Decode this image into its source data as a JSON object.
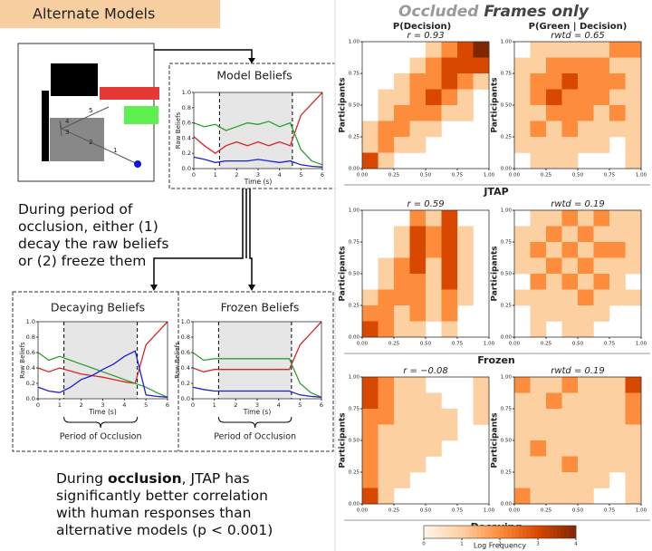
{
  "header": "Alternate Models",
  "scene": {
    "labels": [
      "5",
      "4",
      "3",
      "2",
      "1"
    ]
  },
  "belief_axes": {
    "xlim": [
      0,
      6
    ],
    "ylim": [
      0,
      1
    ],
    "xticks": [
      0,
      1,
      2,
      3,
      4,
      5,
      6
    ],
    "yticks": [
      {
        "value": 0,
        "label": "0.0"
      },
      {
        "value": 0.2,
        "label": "0.2"
      },
      {
        "value": 0.4,
        "label": "0.4"
      },
      {
        "value": 0.6,
        "label": "0.6"
      },
      {
        "value": 0.8,
        "label": "0.8"
      },
      {
        "value": 1,
        "label": "1.0"
      }
    ],
    "xlabel": "Time (s)",
    "ylabel": "Raw Beliefs"
  },
  "x": [
    0,
    0.5,
    1,
    1.5,
    2,
    2.5,
    3,
    3.5,
    4,
    4.5,
    5,
    5.5,
    6
  ],
  "plots": [
    {
      "title": "Model Beliefs",
      "occlusion": [
        1.2,
        4.6
      ],
      "series": [
        {
          "color": "#d62728",
          "values": [
            0.42,
            0.3,
            0.2,
            0.3,
            0.35,
            0.3,
            0.35,
            0.3,
            0.35,
            0.3,
            0.7,
            0.85,
            1.0
          ]
        },
        {
          "color": "#2ca02c",
          "values": [
            0.6,
            0.55,
            0.58,
            0.5,
            0.55,
            0.6,
            0.58,
            0.62,
            0.55,
            0.6,
            0.25,
            0.1,
            0.05
          ]
        },
        {
          "color": "#1f1fd0",
          "values": [
            0.15,
            0.12,
            0.08,
            0.1,
            0.1,
            0.1,
            0.12,
            0.1,
            0.08,
            0.1,
            0.05,
            0.03,
            0.02
          ]
        }
      ]
    },
    {
      "title": "Decaying Beliefs",
      "occlusion": [
        1.2,
        4.6
      ],
      "series": [
        {
          "color": "#d62728",
          "values": [
            0.4,
            0.35,
            0.4,
            0.36,
            0.32,
            0.3,
            0.28,
            0.25,
            0.22,
            0.2,
            0.7,
            0.85,
            1.0
          ]
        },
        {
          "color": "#2ca02c",
          "values": [
            0.6,
            0.5,
            0.55,
            0.5,
            0.45,
            0.4,
            0.35,
            0.3,
            0.25,
            0.2,
            0.15,
            0.08,
            0.02
          ]
        },
        {
          "color": "#1f1fd0",
          "values": [
            0.15,
            0.1,
            0.08,
            0.15,
            0.25,
            0.3,
            0.38,
            0.45,
            0.55,
            0.62,
            0.05,
            0.03,
            0.02
          ]
        }
      ]
    },
    {
      "title": "Frozen Beliefs",
      "occlusion": [
        1.2,
        4.6
      ],
      "series": [
        {
          "color": "#d62728",
          "values": [
            0.4,
            0.35,
            0.38,
            0.38,
            0.38,
            0.38,
            0.38,
            0.38,
            0.38,
            0.38,
            0.7,
            0.85,
            1.0
          ]
        },
        {
          "color": "#2ca02c",
          "values": [
            0.6,
            0.5,
            0.52,
            0.52,
            0.52,
            0.52,
            0.52,
            0.52,
            0.52,
            0.52,
            0.2,
            0.08,
            0.02
          ]
        },
        {
          "color": "#1f1fd0",
          "values": [
            0.15,
            0.12,
            0.1,
            0.1,
            0.1,
            0.1,
            0.1,
            0.1,
            0.1,
            0.1,
            0.05,
            0.03,
            0.02
          ]
        }
      ]
    }
  ],
  "occlusion_label": "Period of Occlusion",
  "note1": "During period of occlusion, either (1) decay the raw beliefs or (2) freeze them",
  "note2": [
    "During ",
    "occlusion",
    ", JTAP has significantly better correlation with human responses than alternative models (p < 0.001)"
  ],
  "heatmaps": {
    "title": [
      "Occluded",
      " Frames only"
    ],
    "columns": [
      "P(Decision)",
      "P(Green | Decision)"
    ],
    "ylabel": "Participants",
    "ticks": [
      {
        "value": 0,
        "label": "0.00"
      },
      {
        "value": 0.25,
        "label": "0.25"
      },
      {
        "value": 0.5,
        "label": "0.50"
      },
      {
        "value": 0.75,
        "label": "0.75"
      },
      {
        "value": 1,
        "label": "1.00"
      }
    ],
    "rows": [
      {
        "name": "JTAP",
        "stats": [
          "r = 0.93",
          "rwtd = 0.65"
        ],
        "cells": [
          [
            [
              0,
              0,
              0,
              0,
              1,
              2,
              3,
              4
            ],
            [
              0,
              0,
              0,
              1,
              2,
              3,
              3,
              3
            ],
            [
              0,
              0,
              1,
              2,
              2,
              3,
              2,
              1
            ],
            [
              0,
              1,
              1,
              2,
              3,
              2,
              1,
              0
            ],
            [
              0,
              1,
              2,
              2,
              2,
              1,
              1,
              0
            ],
            [
              1,
              2,
              2,
              1,
              1,
              0,
              0,
              0
            ],
            [
              1,
              2,
              1,
              1,
              0,
              0,
              0,
              0
            ],
            [
              3,
              1,
              0,
              0,
              0,
              0,
              0,
              0
            ]
          ],
          [
            [
              0,
              1,
              1,
              1,
              1,
              1,
              2,
              2
            ],
            [
              1,
              1,
              2,
              2,
              2,
              2,
              1,
              1
            ],
            [
              1,
              2,
              2,
              3,
              2,
              2,
              2,
              1
            ],
            [
              1,
              2,
              3,
              2,
              2,
              2,
              1,
              1
            ],
            [
              1,
              1,
              2,
              2,
              2,
              1,
              2,
              1
            ],
            [
              1,
              2,
              1,
              2,
              1,
              1,
              1,
              1
            ],
            [
              1,
              1,
              1,
              1,
              1,
              1,
              0,
              1
            ],
            [
              0,
              1,
              1,
              1,
              0,
              0,
              0,
              1
            ]
          ]
        ]
      },
      {
        "name": "Frozen",
        "stats": [
          "r = 0.59",
          "rwtd = 0.19"
        ],
        "cells": [
          [
            [
              0,
              0,
              0,
              2,
              1,
              3,
              0,
              0
            ],
            [
              0,
              0,
              1,
              3,
              2,
              3,
              1,
              0
            ],
            [
              0,
              0,
              1,
              3,
              2,
              3,
              1,
              0
            ],
            [
              0,
              1,
              2,
              3,
              1,
              3,
              1,
              0
            ],
            [
              0,
              1,
              2,
              2,
              1,
              3,
              1,
              0
            ],
            [
              1,
              2,
              2,
              2,
              1,
              2,
              1,
              0
            ],
            [
              2,
              2,
              1,
              2,
              1,
              2,
              0,
              0
            ],
            [
              3,
              2,
              1,
              1,
              0,
              1,
              0,
              0
            ]
          ],
          [
            [
              0,
              1,
              1,
              2,
              1,
              2,
              1,
              1
            ],
            [
              1,
              1,
              2,
              1,
              2,
              1,
              1,
              1
            ],
            [
              1,
              2,
              1,
              2,
              1,
              2,
              2,
              1
            ],
            [
              1,
              1,
              2,
              1,
              2,
              1,
              1,
              1
            ],
            [
              0,
              2,
              1,
              2,
              1,
              2,
              1,
              0
            ],
            [
              1,
              1,
              1,
              1,
              2,
              1,
              1,
              1
            ],
            [
              0,
              1,
              1,
              1,
              1,
              1,
              0,
              0
            ],
            [
              0,
              1,
              0,
              1,
              1,
              0,
              0,
              0
            ]
          ]
        ]
      },
      {
        "name": "Decaying",
        "stats": [
          "r = −0.08",
          "rwtd = 0.19"
        ],
        "cells": [
          [
            [
              3,
              2,
              1,
              1,
              0,
              0,
              0,
              1
            ],
            [
              3,
              2,
              1,
              1,
              1,
              0,
              0,
              1
            ],
            [
              2,
              2,
              1,
              1,
              1,
              1,
              0,
              1
            ],
            [
              2,
              1,
              1,
              1,
              1,
              1,
              0,
              0
            ],
            [
              2,
              1,
              1,
              1,
              1,
              0,
              0,
              0
            ],
            [
              2,
              1,
              1,
              1,
              0,
              0,
              0,
              0
            ],
            [
              2,
              1,
              1,
              0,
              0,
              0,
              0,
              0
            ],
            [
              3,
              1,
              0,
              0,
              0,
              0,
              0,
              0
            ]
          ],
          [
            [
              2,
              1,
              1,
              2,
              1,
              1,
              1,
              3
            ],
            [
              1,
              1,
              2,
              1,
              1,
              1,
              1,
              2
            ],
            [
              1,
              1,
              1,
              1,
              1,
              1,
              1,
              2
            ],
            [
              1,
              1,
              1,
              1,
              1,
              1,
              1,
              1
            ],
            [
              1,
              2,
              1,
              1,
              1,
              1,
              1,
              1
            ],
            [
              1,
              1,
              1,
              2,
              1,
              1,
              1,
              1
            ],
            [
              1,
              1,
              1,
              1,
              1,
              1,
              0,
              1
            ],
            [
              2,
              1,
              1,
              1,
              1,
              0,
              0,
              1
            ]
          ]
        ]
      }
    ]
  },
  "colorbar": {
    "lim": [
      0,
      4
    ],
    "ticks": [
      0,
      1,
      2,
      3,
      4
    ],
    "label": "Log Frequency"
  }
}
